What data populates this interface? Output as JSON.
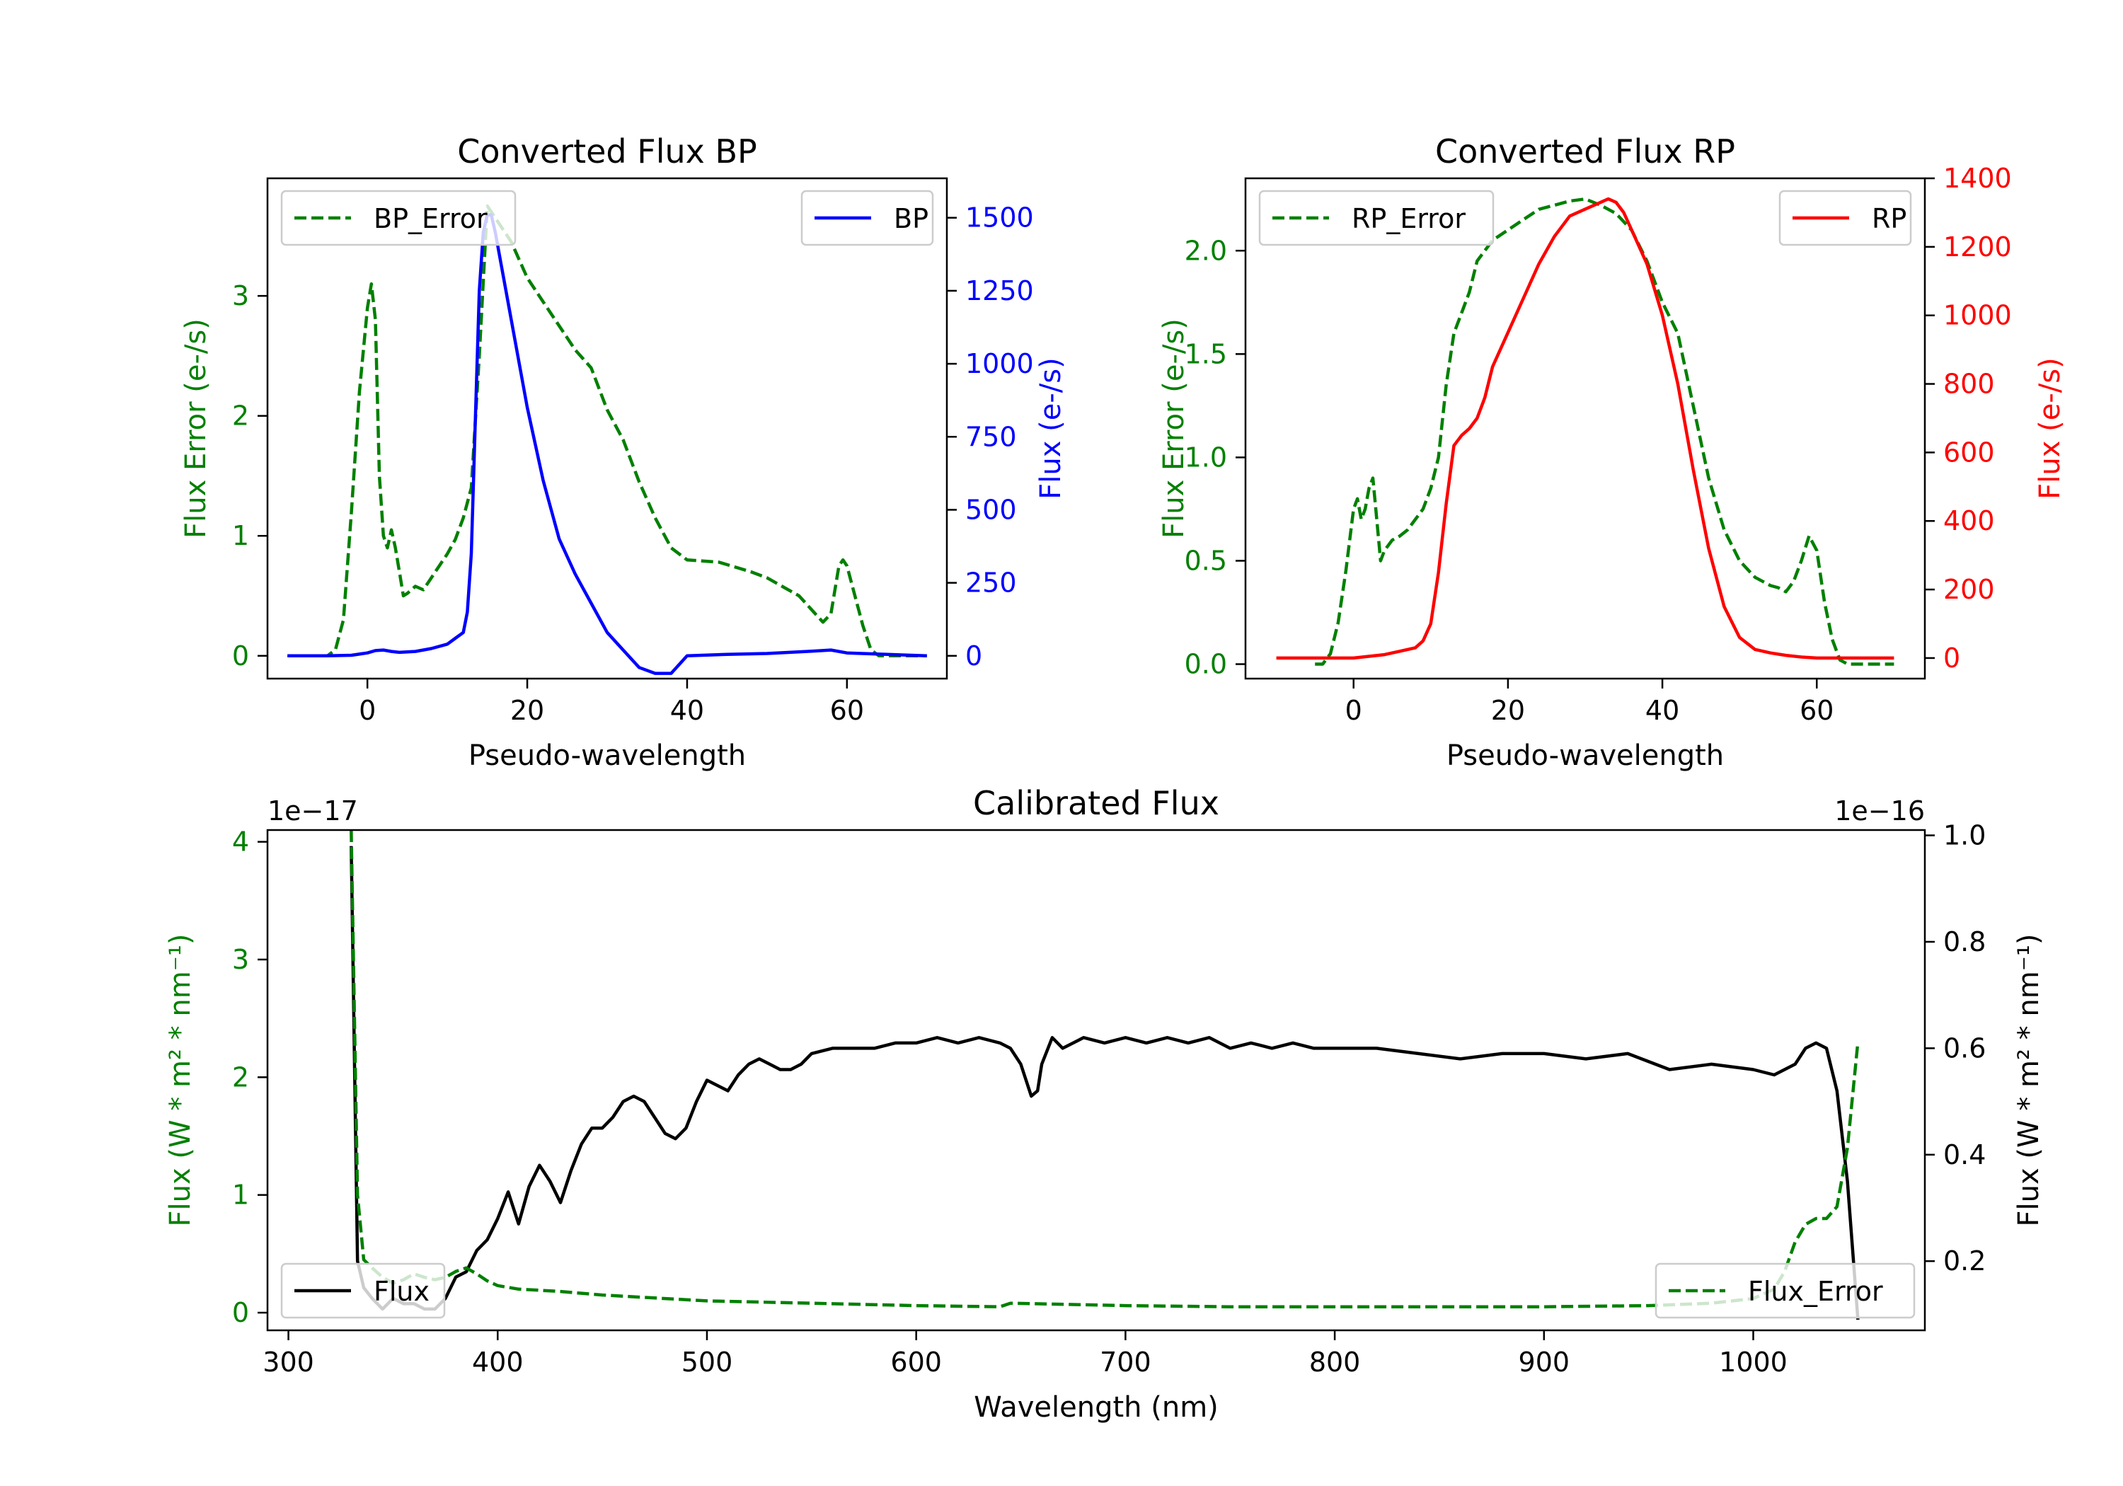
{
  "colors": {
    "green": "#008000",
    "blue": "#0000ff",
    "red": "#ff0000",
    "black": "#000000"
  },
  "chart_data": [
    {
      "id": "bp",
      "type": "line",
      "title": "Converted Flux BP",
      "xlabel": "Pseudo-wavelength",
      "ylabel_left": "Flux Error (e-/s)",
      "ylabel_right": "Flux (e-/s)",
      "xlim": [
        -12.5,
        72.5
      ],
      "ylim_left": [
        -0.19,
        3.98
      ],
      "ylim_right": [
        -78,
        1635
      ],
      "x_ticks": [
        0,
        20,
        40,
        60
      ],
      "y_ticks_left": [
        0,
        1,
        2,
        3
      ],
      "y_ticks_right": [
        0,
        250,
        500,
        750,
        1000,
        1250,
        1500
      ],
      "legend_left": "BP_Error",
      "legend_right": "BP",
      "series": [
        {
          "name": "BP_Error",
          "axis": "left",
          "color": "#008000",
          "dash": true,
          "x": [
            -10,
            -5,
            -4,
            -3,
            -2,
            -1,
            0,
            0.5,
            1,
            1.5,
            2,
            2.5,
            3,
            3.5,
            4,
            4.5,
            5,
            6,
            7,
            8,
            9,
            10,
            11,
            12,
            13,
            14,
            15,
            16,
            17,
            18,
            20,
            22,
            24,
            26,
            28,
            30,
            32,
            34,
            36,
            38,
            40,
            44,
            48,
            50,
            54,
            57,
            58,
            59,
            59.5,
            60,
            61,
            62,
            63,
            64,
            66,
            70
          ],
          "y": [
            0,
            0,
            0.05,
            0.3,
            1.2,
            2.2,
            2.9,
            3.1,
            2.8,
            1.5,
            1.0,
            0.9,
            1.05,
            0.9,
            0.7,
            0.5,
            0.52,
            0.58,
            0.55,
            0.65,
            0.75,
            0.85,
            0.97,
            1.15,
            1.4,
            2.5,
            3.75,
            3.65,
            3.55,
            3.45,
            3.15,
            2.95,
            2.75,
            2.55,
            2.4,
            2.05,
            1.8,
            1.45,
            1.15,
            0.9,
            0.8,
            0.78,
            0.7,
            0.65,
            0.5,
            0.28,
            0.35,
            0.75,
            0.8,
            0.75,
            0.5,
            0.25,
            0.05,
            0,
            0,
            0
          ]
        },
        {
          "name": "BP",
          "axis": "right",
          "color": "#0000ff",
          "dash": false,
          "x": [
            -10,
            -5,
            -2,
            0,
            1,
            2,
            3,
            4,
            6,
            8,
            10,
            11,
            12,
            12.5,
            13,
            13.5,
            14,
            14.5,
            15,
            15.5,
            16,
            17,
            18,
            19,
            20,
            22,
            24,
            26,
            28,
            30,
            32,
            34,
            36,
            38,
            40,
            45,
            50,
            55,
            58,
            60,
            65,
            70
          ],
          "y": [
            0,
            0,
            2,
            10,
            18,
            20,
            15,
            12,
            15,
            25,
            40,
            60,
            80,
            150,
            350,
            800,
            1250,
            1450,
            1510,
            1510,
            1450,
            1300,
            1150,
            1000,
            850,
            600,
            400,
            280,
            180,
            80,
            20,
            -40,
            -60,
            -60,
            0,
            5,
            8,
            15,
            20,
            10,
            5,
            0
          ]
        }
      ]
    },
    {
      "id": "rp",
      "type": "line",
      "title": "Converted Flux RP",
      "xlabel": "Pseudo-wavelength",
      "ylabel_left": "Flux Error (e-/s)",
      "ylabel_right": "Flux (e-/s)",
      "xlim": [
        -14,
        74
      ],
      "ylim_left": [
        -0.07,
        2.35
      ],
      "ylim_right": [
        -60,
        1400
      ],
      "x_ticks": [
        0,
        20,
        40,
        60
      ],
      "y_ticks_left": [
        0.0,
        0.5,
        1.0,
        1.5,
        2.0
      ],
      "y_ticks_right": [
        0,
        200,
        400,
        600,
        800,
        1000,
        1200,
        1400
      ],
      "legend_left": "RP_Error",
      "legend_right": "RP",
      "series": [
        {
          "name": "RP_Error",
          "axis": "left",
          "color": "#008000",
          "dash": true,
          "x": [
            -5,
            -4,
            -3,
            -2,
            -1,
            0,
            0.5,
            1,
            1.5,
            2,
            2.5,
            3,
            3.5,
            4,
            5,
            6,
            7,
            8,
            9,
            10,
            11,
            12,
            13,
            14,
            15,
            16,
            18,
            20,
            22,
            24,
            26,
            28,
            30,
            32,
            34,
            36,
            38,
            40,
            42,
            44,
            46,
            48,
            50,
            52,
            54,
            55,
            56,
            57,
            58,
            59,
            60,
            61,
            62,
            63,
            64,
            66,
            70
          ],
          "y": [
            0,
            0,
            0.05,
            0.2,
            0.45,
            0.75,
            0.8,
            0.7,
            0.75,
            0.85,
            0.9,
            0.7,
            0.5,
            0.55,
            0.6,
            0.62,
            0.65,
            0.7,
            0.75,
            0.85,
            1.0,
            1.35,
            1.6,
            1.7,
            1.8,
            1.95,
            2.05,
            2.1,
            2.15,
            2.2,
            2.22,
            2.24,
            2.25,
            2.22,
            2.18,
            2.1,
            1.95,
            1.75,
            1.6,
            1.25,
            0.9,
            0.65,
            0.5,
            0.42,
            0.38,
            0.37,
            0.35,
            0.4,
            0.5,
            0.62,
            0.55,
            0.3,
            0.12,
            0.02,
            0,
            0,
            0
          ]
        },
        {
          "name": "RP",
          "axis": "right",
          "color": "#ff0000",
          "dash": false,
          "x": [
            -10,
            -5,
            0,
            2,
            4,
            6,
            8,
            9,
            10,
            11,
            12,
            13,
            14,
            15,
            16,
            17,
            18,
            20,
            22,
            24,
            26,
            28,
            30,
            32,
            33,
            34,
            35,
            36,
            38,
            40,
            42,
            44,
            46,
            48,
            50,
            52,
            54,
            56,
            58,
            60,
            62,
            66,
            70
          ],
          "y": [
            0,
            0,
            0,
            5,
            10,
            20,
            30,
            50,
            100,
            250,
            450,
            620,
            650,
            670,
            700,
            760,
            850,
            950,
            1050,
            1150,
            1230,
            1290,
            1310,
            1330,
            1340,
            1330,
            1300,
            1250,
            1150,
            1000,
            800,
            550,
            320,
            150,
            60,
            25,
            15,
            8,
            3,
            0,
            0,
            0,
            0
          ]
        }
      ]
    },
    {
      "id": "calibrated",
      "type": "line",
      "title": "Calibrated Flux",
      "xlabel": "Wavelength (nm)",
      "ylabel_left": "Flux (W * m² * nm⁻¹)",
      "ylabel_right": "Flux (W * m² * nm⁻¹)",
      "offset_left": "1e−17",
      "offset_right": "1e−16",
      "xlim": [
        290,
        1082
      ],
      "ylim_left": [
        -0.15,
        4.1
      ],
      "ylim_right": [
        0.07,
        1.01
      ],
      "x_ticks": [
        300,
        400,
        500,
        600,
        700,
        800,
        900,
        1000
      ],
      "y_ticks_left": [
        0,
        1,
        2,
        3,
        4
      ],
      "y_ticks_right": [
        0.2,
        0.4,
        0.6,
        0.8,
        1.0
      ],
      "legend_left": "Flux",
      "legend_right": "Flux_Error",
      "series": [
        {
          "name": "Flux",
          "axis": "right",
          "color": "#000000",
          "dash": false,
          "x": [
            330,
            333,
            336,
            340,
            345,
            350,
            355,
            360,
            365,
            370,
            375,
            380,
            385,
            390,
            395,
            400,
            405,
            410,
            415,
            420,
            425,
            430,
            435,
            440,
            445,
            450,
            455,
            460,
            465,
            470,
            475,
            480,
            485,
            490,
            495,
            500,
            505,
            510,
            515,
            520,
            525,
            530,
            535,
            540,
            545,
            550,
            560,
            570,
            580,
            590,
            600,
            610,
            620,
            630,
            640,
            645,
            650,
            655,
            658,
            660,
            665,
            670,
            675,
            680,
            690,
            700,
            710,
            720,
            730,
            740,
            750,
            760,
            770,
            780,
            790,
            800,
            820,
            840,
            860,
            880,
            900,
            920,
            940,
            960,
            980,
            1000,
            1010,
            1020,
            1025,
            1030,
            1035,
            1040,
            1045,
            1050
          ],
          "y": [
            0.98,
            0.2,
            0.15,
            0.13,
            0.11,
            0.13,
            0.12,
            0.12,
            0.11,
            0.11,
            0.13,
            0.17,
            0.18,
            0.22,
            0.24,
            0.28,
            0.33,
            0.27,
            0.34,
            0.38,
            0.35,
            0.31,
            0.37,
            0.42,
            0.45,
            0.45,
            0.47,
            0.5,
            0.51,
            0.5,
            0.47,
            0.44,
            0.43,
            0.45,
            0.5,
            0.54,
            0.53,
            0.52,
            0.55,
            0.57,
            0.58,
            0.57,
            0.56,
            0.56,
            0.57,
            0.59,
            0.6,
            0.6,
            0.6,
            0.61,
            0.61,
            0.62,
            0.61,
            0.62,
            0.61,
            0.6,
            0.57,
            0.51,
            0.52,
            0.57,
            0.62,
            0.6,
            0.61,
            0.62,
            0.61,
            0.62,
            0.61,
            0.62,
            0.61,
            0.62,
            0.6,
            0.61,
            0.6,
            0.61,
            0.6,
            0.6,
            0.6,
            0.59,
            0.58,
            0.59,
            0.59,
            0.58,
            0.59,
            0.56,
            0.57,
            0.56,
            0.55,
            0.57,
            0.6,
            0.61,
            0.6,
            0.52,
            0.35,
            0.09
          ]
        },
        {
          "name": "Flux_Error",
          "axis": "left",
          "color": "#008000",
          "dash": true,
          "x": [
            330,
            333,
            336,
            340,
            345,
            350,
            355,
            360,
            365,
            370,
            375,
            380,
            385,
            390,
            395,
            400,
            410,
            420,
            430,
            450,
            500,
            550,
            600,
            640,
            645,
            700,
            750,
            800,
            850,
            900,
            950,
            980,
            1000,
            1010,
            1015,
            1020,
            1025,
            1030,
            1035,
            1040,
            1045,
            1050
          ],
          "y": [
            4.1,
            1.0,
            0.45,
            0.38,
            0.3,
            0.25,
            0.28,
            0.33,
            0.3,
            0.28,
            0.3,
            0.35,
            0.38,
            0.33,
            0.27,
            0.23,
            0.2,
            0.19,
            0.18,
            0.15,
            0.1,
            0.08,
            0.06,
            0.05,
            0.08,
            0.06,
            0.05,
            0.05,
            0.05,
            0.05,
            0.06,
            0.08,
            0.12,
            0.2,
            0.35,
            0.6,
            0.75,
            0.8,
            0.8,
            0.9,
            1.4,
            2.3
          ]
        }
      ]
    }
  ]
}
